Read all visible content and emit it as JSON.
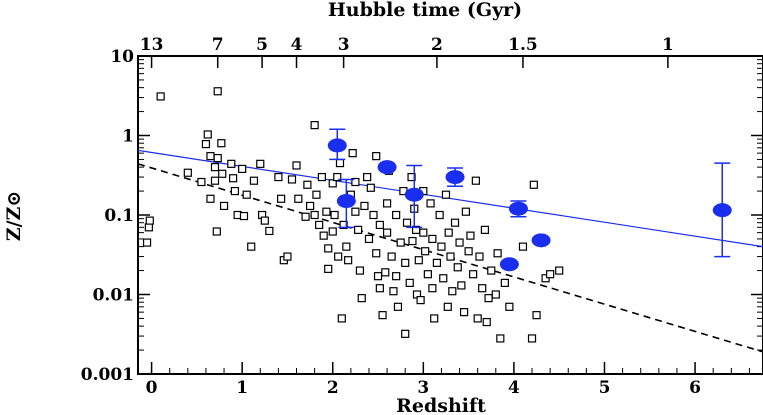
{
  "chart_data": {
    "type": "scatter",
    "title": "",
    "xlabel": "Redshift",
    "ylabel": "Z/Z⊙",
    "top_axis_label": "Hubble time (Gyr)",
    "xlim": [
      -0.15,
      6.75
    ],
    "ylim": [
      0.001,
      10
    ],
    "yscale": "log",
    "x_ticks": [
      0,
      1,
      2,
      3,
      4,
      5,
      6
    ],
    "x_tick_labels": [
      "0",
      "1",
      "2",
      "3",
      "4",
      "5",
      "6"
    ],
    "y_ticks": [
      0.001,
      0.01,
      0.1,
      1,
      10
    ],
    "y_tick_labels": [
      "0.001",
      "0.01",
      "0.1",
      "1",
      "10"
    ],
    "top_ticks": [
      {
        "label": "13",
        "z": 0.0
      },
      {
        "label": "7",
        "z": 0.73
      },
      {
        "label": "5",
        "z": 1.22
      },
      {
        "label": "4",
        "z": 1.6
      },
      {
        "label": "3",
        "z": 2.12
      },
      {
        "label": "2",
        "z": 3.15
      },
      {
        "label": "1.5",
        "z": 4.1
      },
      {
        "label": "1",
        "z": 5.7
      }
    ],
    "grid": false,
    "series": [
      {
        "marker": "open-square",
        "color": "#000000",
        "points": [
          [
            -0.05,
            0.045
          ],
          [
            -0.03,
            0.07
          ],
          [
            -0.02,
            0.085
          ],
          [
            0.1,
            3.1
          ],
          [
            0.4,
            0.34
          ],
          [
            0.55,
            0.26
          ],
          [
            0.6,
            0.78
          ],
          [
            0.62,
            1.03
          ],
          [
            0.65,
            0.55
          ],
          [
            0.65,
            0.16
          ],
          [
            0.7,
            0.27
          ],
          [
            0.7,
            0.4
          ],
          [
            0.72,
            0.062
          ],
          [
            0.73,
            3.6
          ],
          [
            0.73,
            0.52
          ],
          [
            0.77,
            0.8
          ],
          [
            0.78,
            0.33
          ],
          [
            0.8,
            0.13
          ],
          [
            0.88,
            0.44
          ],
          [
            0.9,
            0.29
          ],
          [
            0.92,
            0.2
          ],
          [
            0.95,
            0.1
          ],
          [
            1.0,
            0.38
          ],
          [
            1.02,
            0.097
          ],
          [
            1.05,
            0.18
          ],
          [
            1.1,
            0.04
          ],
          [
            1.13,
            0.27
          ],
          [
            1.2,
            0.44
          ],
          [
            1.22,
            0.1
          ],
          [
            1.25,
            0.085
          ],
          [
            1.3,
            0.063
          ],
          [
            1.4,
            0.3
          ],
          [
            1.43,
            0.16
          ],
          [
            1.46,
            0.027
          ],
          [
            1.5,
            0.03
          ],
          [
            1.55,
            0.28
          ],
          [
            1.6,
            0.42
          ],
          [
            1.62,
            0.16
          ],
          [
            1.7,
            0.095
          ],
          [
            1.72,
            0.24
          ],
          [
            1.75,
            0.13
          ],
          [
            1.8,
            1.35
          ],
          [
            1.8,
            0.1
          ],
          [
            1.82,
            0.18
          ],
          [
            1.85,
            0.075
          ],
          [
            1.88,
            0.3
          ],
          [
            1.9,
            0.055
          ],
          [
            1.93,
            0.11
          ],
          [
            1.95,
            0.021
          ],
          [
            1.95,
            0.038
          ],
          [
            2.0,
            0.062
          ],
          [
            2.0,
            0.25
          ],
          [
            2.02,
            0.1
          ],
          [
            2.05,
            0.3
          ],
          [
            2.06,
            0.03
          ],
          [
            2.08,
            0.45
          ],
          [
            2.1,
            0.005
          ],
          [
            2.12,
            0.075
          ],
          [
            2.15,
            0.04
          ],
          [
            2.17,
            0.027
          ],
          [
            2.2,
            0.18
          ],
          [
            2.22,
            0.6
          ],
          [
            2.25,
            0.11
          ],
          [
            2.25,
            0.26
          ],
          [
            2.28,
            0.065
          ],
          [
            2.3,
            0.02
          ],
          [
            2.32,
            0.009
          ],
          [
            2.35,
            0.13
          ],
          [
            2.38,
            0.3
          ],
          [
            2.4,
            0.05
          ],
          [
            2.42,
            0.22
          ],
          [
            2.45,
            0.1
          ],
          [
            2.48,
            0.55
          ],
          [
            2.48,
            0.033
          ],
          [
            2.5,
            0.017
          ],
          [
            2.52,
            0.075
          ],
          [
            2.52,
            0.012
          ],
          [
            2.55,
            0.0055
          ],
          [
            2.58,
            0.019
          ],
          [
            2.6,
            0.14
          ],
          [
            2.6,
            0.06
          ],
          [
            2.62,
            0.36
          ],
          [
            2.65,
            0.03
          ],
          [
            2.67,
            0.011
          ],
          [
            2.7,
            0.1
          ],
          [
            2.7,
            0.017
          ],
          [
            2.72,
            0.007
          ],
          [
            2.75,
            0.045
          ],
          [
            2.78,
            0.2
          ],
          [
            2.8,
            0.025
          ],
          [
            2.8,
            0.0032
          ],
          [
            2.82,
            0.08
          ],
          [
            2.85,
            0.014
          ],
          [
            2.87,
            0.3
          ],
          [
            2.88,
            0.047
          ],
          [
            2.9,
            0.12
          ],
          [
            2.92,
            0.065
          ],
          [
            2.93,
            0.01
          ],
          [
            2.95,
            0.027
          ],
          [
            2.97,
            0.0085
          ],
          [
            3.0,
            0.2
          ],
          [
            3.0,
            0.06
          ],
          [
            3.02,
            0.035
          ],
          [
            3.05,
            0.018
          ],
          [
            3.08,
            0.14
          ],
          [
            3.1,
            0.012
          ],
          [
            3.1,
            0.05
          ],
          [
            3.12,
            0.005
          ],
          [
            3.15,
            0.025
          ],
          [
            3.18,
            0.1
          ],
          [
            3.2,
            0.04
          ],
          [
            3.22,
            0.016
          ],
          [
            3.25,
            0.18
          ],
          [
            3.27,
            0.007
          ],
          [
            3.28,
            0.06
          ],
          [
            3.3,
            0.03
          ],
          [
            3.32,
            0.011
          ],
          [
            3.35,
            0.08
          ],
          [
            3.38,
            0.022
          ],
          [
            3.4,
            0.045
          ],
          [
            3.42,
            0.013
          ],
          [
            3.45,
            0.006
          ],
          [
            3.47,
            0.11
          ],
          [
            3.5,
            0.035
          ],
          [
            3.52,
            0.055
          ],
          [
            3.55,
            0.018
          ],
          [
            3.58,
            0.27
          ],
          [
            3.6,
            0.005
          ],
          [
            3.62,
            0.03
          ],
          [
            3.65,
            0.012
          ],
          [
            3.68,
            0.065
          ],
          [
            3.7,
            0.0045
          ],
          [
            3.72,
            0.009
          ],
          [
            3.75,
            0.02
          ],
          [
            3.8,
            0.01
          ],
          [
            3.82,
            0.033
          ],
          [
            3.85,
            0.0028
          ],
          [
            3.9,
            0.014
          ],
          [
            3.95,
            0.007
          ],
          [
            4.1,
            0.04
          ],
          [
            4.2,
            0.0028
          ],
          [
            4.22,
            0.24
          ],
          [
            4.25,
            0.0055
          ],
          [
            4.35,
            0.016
          ],
          [
            4.4,
            0.018
          ],
          [
            4.5,
            0.02
          ]
        ]
      },
      {
        "marker": "filled-circle-errorbar",
        "color": "#1a2ef0",
        "points": [
          {
            "x": 2.05,
            "y": 0.75,
            "lo": 0.5,
            "hi": 1.2
          },
          {
            "x": 2.15,
            "y": 0.15,
            "lo": 0.07,
            "hi": 0.28
          },
          {
            "x": 2.6,
            "y": 0.4,
            "lo": 0.38,
            "hi": 0.42
          },
          {
            "x": 2.9,
            "y": 0.18,
            "lo": 0.07,
            "hi": 0.42
          },
          {
            "x": 3.35,
            "y": 0.3,
            "lo": 0.23,
            "hi": 0.39
          },
          {
            "x": 3.95,
            "y": 0.024,
            "lo": 0.024,
            "hi": 0.024
          },
          {
            "x": 4.05,
            "y": 0.12,
            "lo": 0.095,
            "hi": 0.15
          },
          {
            "x": 4.3,
            "y": 0.048,
            "lo": 0.048,
            "hi": 0.048
          },
          {
            "x": 6.3,
            "y": 0.115,
            "lo": 0.03,
            "hi": 0.45
          }
        ]
      }
    ],
    "lines": [
      {
        "style": "solid",
        "color": "#1a2ef0",
        "x": [
          -0.15,
          6.75
        ],
        "y": [
          0.65,
          0.04
        ]
      },
      {
        "style": "dashed",
        "color": "#000000",
        "x": [
          -0.15,
          6.75
        ],
        "y": [
          0.44,
          0.0019
        ]
      }
    ]
  }
}
